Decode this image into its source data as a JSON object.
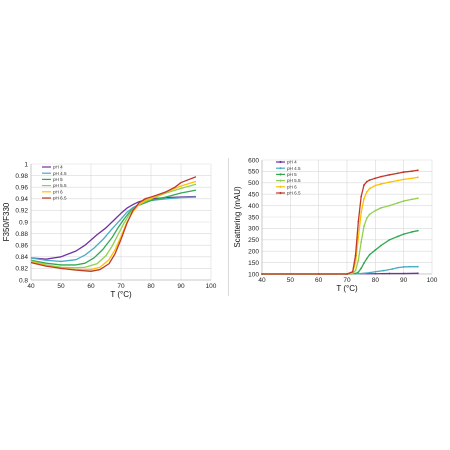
{
  "chart_data": [
    {
      "type": "line",
      "title": "",
      "xlabel": "T (°C)",
      "ylabel": "F350/F330",
      "xlim": [
        40,
        100
      ],
      "ylim": [
        0.8,
        1.0
      ],
      "xticks": [
        40,
        50,
        60,
        70,
        80,
        90,
        100
      ],
      "yticks": [
        0.8,
        0.82,
        0.84,
        0.86,
        0.88,
        0.9,
        0.92,
        0.94,
        0.96,
        0.98,
        1.0
      ],
      "ytick_labels": [
        "0.8",
        "0.82",
        "0.84",
        "0.86",
        "0.88",
        "0.9",
        "0.92",
        "0.94",
        "0.96",
        "0.98",
        "1"
      ],
      "grid": true,
      "legend_position": "top-left",
      "series": [
        {
          "name": "pH 4",
          "color": "#7030a0",
          "x": [
            40,
            45,
            50,
            55,
            58,
            62,
            65,
            68,
            70,
            72,
            74,
            76,
            78,
            80,
            85,
            90,
            95
          ],
          "y": [
            0.838,
            0.836,
            0.84,
            0.85,
            0.86,
            0.878,
            0.89,
            0.905,
            0.915,
            0.924,
            0.93,
            0.935,
            0.938,
            0.94,
            0.942,
            0.943,
            0.944
          ]
        },
        {
          "name": "pH 4.5",
          "color": "#4bacc6",
          "x": [
            40,
            45,
            50,
            55,
            58,
            61,
            64,
            67,
            70,
            72,
            74,
            76,
            78,
            80,
            85,
            90,
            95
          ],
          "y": [
            0.838,
            0.834,
            0.832,
            0.835,
            0.843,
            0.855,
            0.87,
            0.888,
            0.905,
            0.917,
            0.925,
            0.93,
            0.934,
            0.937,
            0.94,
            0.942,
            0.943
          ]
        },
        {
          "name": "pH 5",
          "color": "#33a853",
          "x": [
            40,
            45,
            50,
            55,
            58,
            61,
            64,
            67,
            69,
            71,
            73,
            75,
            78,
            80,
            85,
            90,
            95
          ],
          "y": [
            0.834,
            0.829,
            0.826,
            0.826,
            0.829,
            0.838,
            0.853,
            0.873,
            0.89,
            0.905,
            0.918,
            0.927,
            0.933,
            0.937,
            0.943,
            0.95,
            0.955
          ]
        },
        {
          "name": "pH 5.5",
          "color": "#92d050",
          "x": [
            40,
            45,
            50,
            55,
            58,
            62,
            65,
            67,
            69,
            71,
            73,
            75,
            78,
            80,
            85,
            90,
            95
          ],
          "y": [
            0.833,
            0.826,
            0.822,
            0.821,
            0.822,
            0.828,
            0.842,
            0.858,
            0.878,
            0.898,
            0.915,
            0.927,
            0.935,
            0.94,
            0.95,
            0.958,
            0.965
          ]
        },
        {
          "name": "pH 6",
          "color": "#ffc000",
          "x": [
            40,
            45,
            50,
            55,
            60,
            63,
            66,
            68,
            70,
            72,
            74,
            76,
            78,
            80,
            85,
            90,
            95
          ],
          "y": [
            0.831,
            0.825,
            0.82,
            0.818,
            0.818,
            0.822,
            0.835,
            0.852,
            0.875,
            0.9,
            0.918,
            0.93,
            0.937,
            0.941,
            0.952,
            0.962,
            0.97
          ]
        },
        {
          "name": "pH 6.5",
          "color": "#c0392b",
          "x": [
            40,
            45,
            50,
            55,
            60,
            63,
            66,
            68,
            70,
            72,
            74,
            76,
            78,
            80,
            85,
            88,
            90,
            95
          ],
          "y": [
            0.83,
            0.824,
            0.82,
            0.817,
            0.815,
            0.818,
            0.828,
            0.845,
            0.87,
            0.898,
            0.92,
            0.933,
            0.94,
            0.943,
            0.952,
            0.96,
            0.968,
            0.978
          ]
        }
      ]
    },
    {
      "type": "line",
      "title": "",
      "xlabel": "T (°C)",
      "ylabel": "Scattering (mAU)",
      "xlim": [
        40,
        100
      ],
      "ylim": [
        100,
        600
      ],
      "xticks": [
        40,
        50,
        60,
        70,
        80,
        90,
        100
      ],
      "yticks": [
        100,
        150,
        200,
        250,
        300,
        350,
        400,
        450,
        500,
        550,
        600
      ],
      "grid": true,
      "markers": true,
      "legend_position": "top-left",
      "series": [
        {
          "name": "pH 4",
          "color": "#7030a0",
          "x": [
            40,
            50,
            60,
            70,
            75,
            80,
            85,
            90,
            95
          ],
          "y": [
            100,
            100,
            100,
            100,
            101,
            101,
            102,
            102,
            103
          ]
        },
        {
          "name": "pH 4.5",
          "color": "#4bacc6",
          "x": [
            40,
            60,
            70,
            74,
            76,
            78,
            80,
            83,
            86,
            88,
            90,
            92,
            95
          ],
          "y": [
            100,
            100,
            100,
            101,
            103,
            106,
            110,
            115,
            122,
            128,
            131,
            132,
            132
          ]
        },
        {
          "name": "pH 5",
          "color": "#33a853",
          "x": [
            40,
            60,
            70,
            73,
            74,
            75,
            76,
            77,
            78,
            80,
            82,
            85,
            88,
            90,
            93,
            95
          ],
          "y": [
            100,
            100,
            100,
            102,
            108,
            125,
            148,
            168,
            185,
            205,
            225,
            250,
            265,
            275,
            285,
            290
          ]
        },
        {
          "name": "pH 5.5",
          "color": "#92d050",
          "x": [
            40,
            60,
            70,
            72,
            73,
            74,
            75,
            76,
            77,
            78,
            80,
            82,
            85,
            88,
            90,
            93,
            95
          ],
          "y": [
            100,
            100,
            100,
            103,
            115,
            160,
            240,
            310,
            345,
            362,
            378,
            390,
            400,
            412,
            420,
            428,
            432
          ]
        },
        {
          "name": "pH 6",
          "color": "#ffc000",
          "x": [
            40,
            60,
            70,
            72,
            73,
            74,
            75,
            76,
            77,
            78,
            80,
            82,
            85,
            88,
            90,
            93,
            95
          ],
          "y": [
            100,
            100,
            100,
            108,
            150,
            260,
            370,
            430,
            460,
            475,
            488,
            495,
            503,
            510,
            515,
            520,
            524
          ]
        },
        {
          "name": "pH 6.5",
          "color": "#c0392b",
          "x": [
            40,
            60,
            70,
            72,
            73,
            74,
            75,
            76,
            77,
            78,
            80,
            82,
            85,
            88,
            90,
            93,
            95
          ],
          "y": [
            100,
            100,
            100,
            110,
            180,
            330,
            440,
            490,
            505,
            512,
            520,
            527,
            535,
            542,
            547,
            551,
            555
          ]
        }
      ]
    }
  ]
}
